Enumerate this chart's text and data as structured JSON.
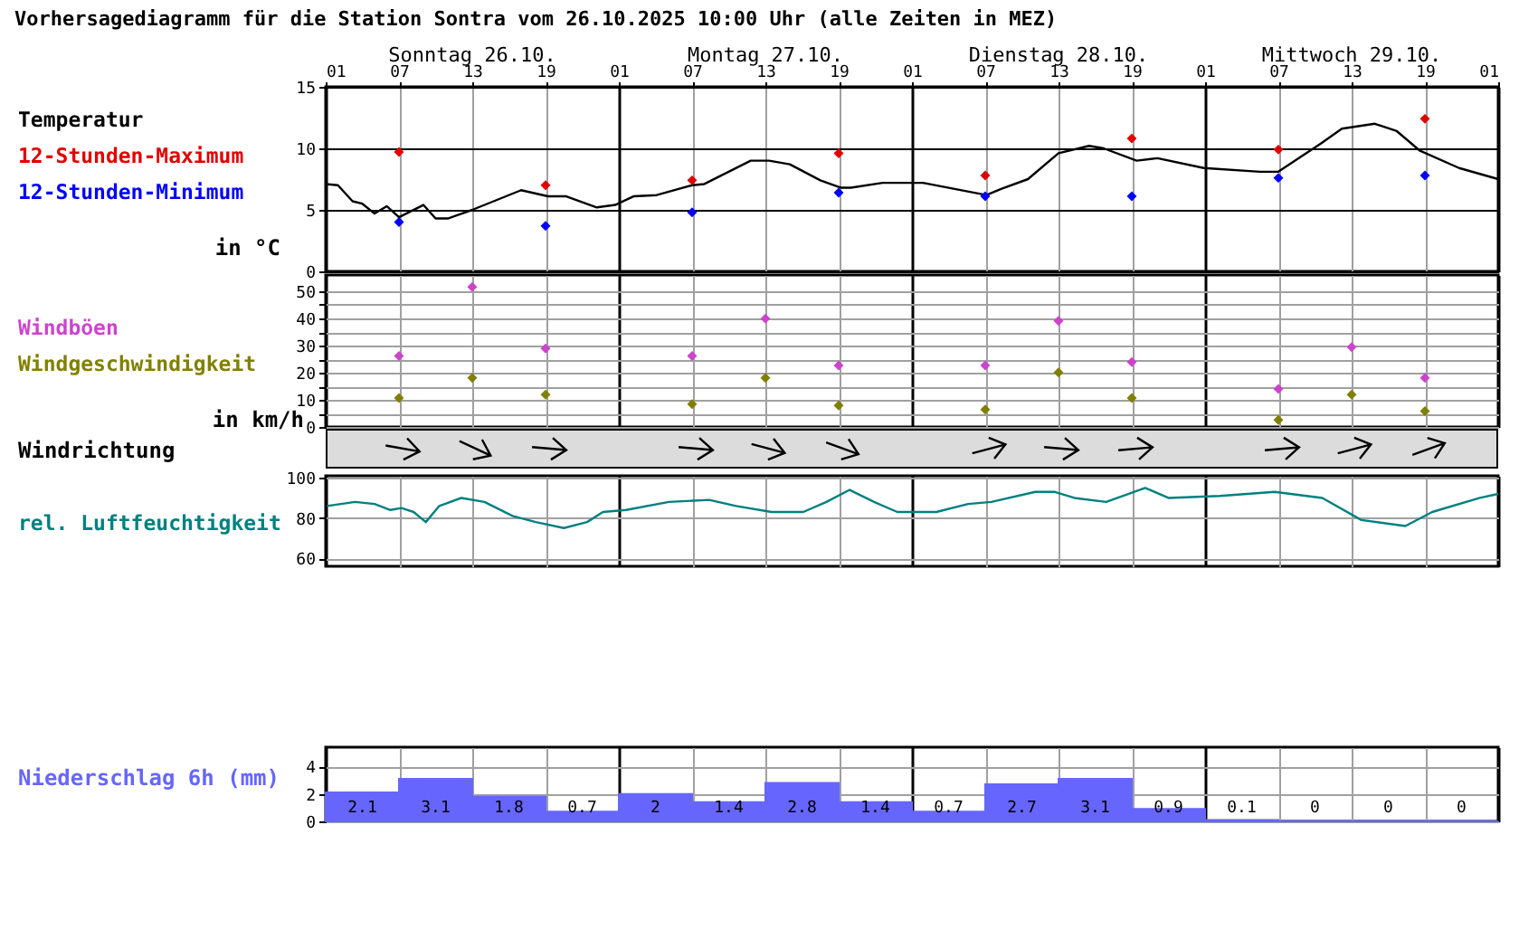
{
  "chart_data": [
    {
      "type": "line",
      "title": "Vorhersagediagramm für die Station Sontra vom 26.10.2025 10:00 Uhr (alle Zeiten in MEZ)",
      "ylabel": "in °C",
      "x": [
        "2025-10-26T07:00",
        "2025-10-26T19:00",
        "2025-10-27T07:00",
        "2025-10-27T19:00",
        "2025-10-28T07:00",
        "2025-10-28T19:00",
        "2025-10-29T07:00",
        "2025-10-29T19:00"
      ],
      "series": [
        {
          "name": "Temperatur",
          "type": "line",
          "color": "#000000",
          "x": [
            "2025-10-26T01:00",
            "2025-10-26T02:00",
            "2025-10-26T03:12",
            "2025-10-26T04:00",
            "2025-10-26T05:00",
            "2025-10-26T06:00",
            "2025-10-26T07:00",
            "2025-10-26T09:00",
            "2025-10-26T10:00",
            "2025-10-26T11:00",
            "2025-10-26T13:00",
            "2025-10-26T17:00",
            "2025-10-26T19:12",
            "2025-10-26T20:42",
            "2025-10-26T23:12",
            "2025-10-27T00:42",
            "2025-10-27T02:12",
            "2025-10-27T04:06",
            "2025-10-27T07:00",
            "2025-10-27T08:00",
            "2025-10-27T11:48",
            "2025-10-27T13:18",
            "2025-10-27T15:00",
            "2025-10-27T17:30",
            "2025-10-27T19:12",
            "2025-10-27T20:00",
            "2025-10-27T22:36",
            "2025-10-28T01:54",
            "2025-10-28T07:06",
            "2025-10-28T08:18",
            "2025-10-28T10:30",
            "2025-10-28T13:00",
            "2025-10-28T15:30",
            "2025-10-28T16:42",
            "2025-10-28T19:24",
            "2025-10-28T21:06",
            "2025-10-29T00:54",
            "2025-10-29T05:30",
            "2025-10-29T07:00",
            "2025-10-29T10:30",
            "2025-10-29T12:12",
            "2025-10-29T14:54",
            "2025-10-29T16:42",
            "2025-10-29T18:36",
            "2025-10-29T21:48",
            "2025-10-30T01:00"
          ],
          "values": [
            7.1,
            7.0,
            5.7,
            5.5,
            4.7,
            5.3,
            4.4,
            5.4,
            4.3,
            4.3,
            5.0,
            6.6,
            6.1,
            6.1,
            5.2,
            5.4,
            6.1,
            6.2,
            7.0,
            7.1,
            9.0,
            9.0,
            8.7,
            7.4,
            6.8,
            6.8,
            7.2,
            7.2,
            6.2,
            6.7,
            7.5,
            9.6,
            10.2,
            10.0,
            9.0,
            9.2,
            8.4,
            8.1,
            8.1,
            10.4,
            11.6,
            12.0,
            11.4,
            9.8,
            8.4,
            7.5
          ]
        },
        {
          "name": "12-Stunden-Maximum",
          "type": "scatter",
          "marker": "diamond",
          "color": "#e00000",
          "values": [
            9.7,
            7.0,
            7.4,
            9.6,
            7.8,
            10.8,
            9.9,
            12.4
          ]
        },
        {
          "name": "12-Stunden-Minimum",
          "type": "scatter",
          "marker": "diamond",
          "color": "#0000ff",
          "values": [
            4.0,
            3.7,
            4.8,
            6.4,
            6.1,
            6.1,
            7.6,
            7.8
          ]
        }
      ],
      "xlim": [
        "2025-10-26T01:00",
        "2025-10-30T01:00"
      ],
      "xticks": [
        {
          "value": "2025-10-26T01:00",
          "label": "01"
        },
        {
          "value": "2025-10-26T07:00",
          "label": "07"
        },
        {
          "value": "2025-10-26T13:00",
          "label": "13"
        },
        {
          "value": "2025-10-26T19:00",
          "label": "19"
        },
        {
          "value": "2025-10-27T01:00",
          "label": "01"
        },
        {
          "value": "2025-10-27T07:00",
          "label": "07"
        },
        {
          "value": "2025-10-27T13:00",
          "label": "13"
        },
        {
          "value": "2025-10-27T19:00",
          "label": "19"
        },
        {
          "value": "2025-10-28T01:00",
          "label": "01"
        },
        {
          "value": "2025-10-28T07:00",
          "label": "07"
        },
        {
          "value": "2025-10-28T13:00",
          "label": "13"
        },
        {
          "value": "2025-10-28T19:00",
          "label": "19"
        },
        {
          "value": "2025-10-29T01:00",
          "label": "01"
        },
        {
          "value": "2025-10-29T07:00",
          "label": "07"
        },
        {
          "value": "2025-10-29T13:00",
          "label": "13"
        },
        {
          "value": "2025-10-29T19:00",
          "label": "19"
        },
        {
          "value": "2025-10-30T01:00",
          "label": "01"
        }
      ],
      "x2ticks": [
        {
          "value": "2025-10-26T13:00",
          "label": "Sonntag 26.10."
        },
        {
          "value": "2025-10-27T13:00",
          "label": "Montag 27.10."
        },
        {
          "value": "2025-10-28T13:00",
          "label": "Dienstag 28.10."
        },
        {
          "value": "2025-10-29T13:00",
          "label": "Mittwoch 29.10."
        }
      ],
      "x2lim": [
        "2025-10-26T01:00",
        "2025-10-30T01:00"
      ],
      "ylim": [
        0,
        15
      ],
      "yticks": [
        0,
        5,
        10,
        15
      ],
      "grid": true,
      "legend": "left"
    },
    {
      "type": "scatter",
      "ylabel": "in km/h",
      "annotations": [
        "Windrichtung"
      ],
      "x": [
        "2025-10-26T07:00",
        "2025-10-26T13:00",
        "2025-10-26T19:00",
        "2025-10-27T07:00",
        "2025-10-27T13:00",
        "2025-10-27T19:00",
        "2025-10-28T07:00",
        "2025-10-28T13:00",
        "2025-10-28T19:00",
        "2025-10-29T07:00",
        "2025-10-29T13:00",
        "2025-10-29T19:00"
      ],
      "series": [
        {
          "name": "Windböen",
          "color": "#cc44cc",
          "values": [
            26.2,
            51.6,
            28.9,
            26.2,
            39.9,
            22.7,
            22.7,
            39.1,
            23.9,
            14.0,
            29.4,
            18.1
          ]
        },
        {
          "name": "Windgeschwindigkeit",
          "color": "#808000",
          "values": [
            10.7,
            18.1,
            11.9,
            8.4,
            18.1,
            7.9,
            6.4,
            20.1,
            10.7,
            2.6,
            11.9,
            5.8
          ]
        }
      ],
      "xlim": [
        "2025-10-26T01:00",
        "2025-10-30T01:00"
      ],
      "xticks": [
        "2025-10-26T01:00",
        "2025-10-26T07:00",
        "2025-10-26T13:00",
        "2025-10-26T19:00",
        "2025-10-27T01:00",
        "2025-10-27T07:00",
        "2025-10-27T13:00",
        "2025-10-27T19:00",
        "2025-10-28T01:00",
        "2025-10-28T07:00",
        "2025-10-28T13:00",
        "2025-10-28T19:00",
        "2025-10-29T01:00",
        "2025-10-29T07:00",
        "2025-10-29T13:00",
        "2025-10-29T19:00",
        "2025-10-30T01:00"
      ],
      "ylim": [
        0,
        56
      ],
      "yticks": [
        0,
        {
          "value": 5,
          "label": null
        },
        10,
        {
          "value": 15,
          "label": null
        },
        20,
        {
          "value": 25,
          "label": null
        },
        30,
        {
          "value": 35,
          "label": null
        },
        40,
        {
          "value": 45,
          "label": null
        },
        50
      ],
      "grid": true,
      "legend": "left",
      "marker": "diamond",
      "tick_labels": "y"
    },
    {
      "type": "line",
      "x": [
        "2025-10-26T01:06",
        "2025-10-26T03:24",
        "2025-10-26T05:00",
        "2025-10-26T06:18",
        "2025-10-26T07:12",
        "2025-10-26T08:12",
        "2025-10-26T09:12",
        "2025-10-26T10:18",
        "2025-10-26T12:06",
        "2025-10-26T14:00",
        "2025-10-26T16:18",
        "2025-10-26T18:12",
        "2025-10-26T20:30",
        "2025-10-26T22:24",
        "2025-10-26T23:42",
        "2025-10-27T01:36",
        "2025-10-27T05:06",
        "2025-10-27T08:24",
        "2025-10-27T10:36",
        "2025-10-27T13:30",
        "2025-10-27T16:06",
        "2025-10-27T18:00",
        "2025-10-27T19:54",
        "2025-10-27T21:54",
        "2025-10-27T23:48",
        "2025-10-28T03:00",
        "2025-10-28T05:36",
        "2025-10-28T07:30",
        "2025-10-28T11:06",
        "2025-10-28T12:42",
        "2025-10-28T14:18",
        "2025-10-28T16:54",
        "2025-10-28T20:06",
        "2025-10-28T22:00",
        "2025-10-29T02:12",
        "2025-10-29T06:42",
        "2025-10-29T10:36",
        "2025-10-29T13:48",
        "2025-10-29T17:24",
        "2025-10-29T19:36",
        "2025-10-29T23:30",
        "2025-10-30T01:00"
      ],
      "series": [
        {
          "name": "rel. Luftfeuchtigkeit",
          "color": "#008080",
          "values": [
            86,
            88,
            87,
            84,
            85,
            83,
            78,
            86,
            90,
            88,
            81,
            78,
            75,
            78,
            83,
            84,
            88,
            89,
            86,
            83,
            83,
            88,
            94,
            88,
            83,
            83,
            87,
            88,
            93,
            93,
            90,
            88,
            95,
            90,
            91,
            93,
            90,
            79,
            76,
            83,
            90,
            92
          ]
        }
      ],
      "xlim": [
        "2025-10-26T01:00",
        "2025-10-30T01:00"
      ],
      "xticks": [
        "2025-10-26T01:00",
        "2025-10-26T07:00",
        "2025-10-26T13:00",
        "2025-10-26T19:00",
        "2025-10-27T01:00",
        "2025-10-27T07:00",
        "2025-10-27T13:00",
        "2025-10-27T19:00",
        "2025-10-28T01:00",
        "2025-10-28T07:00",
        "2025-10-28T13:00",
        "2025-10-28T19:00",
        "2025-10-29T01:00",
        "2025-10-29T07:00",
        "2025-10-29T13:00",
        "2025-10-29T19:00",
        "2025-10-30T01:00"
      ],
      "ylim": [
        56,
        101
      ],
      "yticks": [
        60,
        80,
        100
      ],
      "grid": true,
      "legend": "left",
      "tick_labels": "y"
    },
    {
      "type": "histogram",
      "ylabel": "Niederschlag 6h (mm)",
      "color": "#6666ff",
      "bins": [
        "2025-10-26T01:00",
        "2025-10-26T07:00",
        "2025-10-26T13:00",
        "2025-10-26T19:00",
        "2025-10-27T01:00",
        "2025-10-27T07:00",
        "2025-10-27T13:00",
        "2025-10-27T19:00",
        "2025-10-28T01:00",
        "2025-10-28T07:00",
        "2025-10-28T13:00",
        "2025-10-28T19:00",
        "2025-10-29T01:00",
        "2025-10-29T07:00",
        "2025-10-29T13:00",
        "2025-10-29T19:00",
        "2025-10-30T01:00"
      ],
      "values": [
        2.1,
        3.1,
        1.8,
        0.7,
        2,
        1.4,
        2.8,
        1.4,
        0.7,
        2.7,
        3.1,
        0.9,
        0.1,
        0,
        0,
        0
      ],
      "xlim": [
        "2025-10-26T01:00",
        "2025-10-30T01:00"
      ],
      "xticks": [
        "2025-10-26T01:00",
        "2025-10-26T07:00",
        "2025-10-26T13:00",
        "2025-10-26T19:00",
        "2025-10-27T01:00",
        "2025-10-27T07:00",
        "2025-10-27T13:00",
        "2025-10-27T19:00",
        "2025-10-28T01:00",
        "2025-10-28T07:00",
        "2025-10-28T13:00",
        "2025-10-28T19:00",
        "2025-10-29T01:00",
        "2025-10-29T07:00",
        "2025-10-29T13:00",
        "2025-10-29T19:00",
        "2025-10-30T01:00"
      ],
      "ylim": [
        0,
        5.4
      ],
      "yticks": [
        0,
        2,
        4
      ],
      "grid": true,
      "data_labels": true,
      "tick_labels": "y"
    }
  ]
}
